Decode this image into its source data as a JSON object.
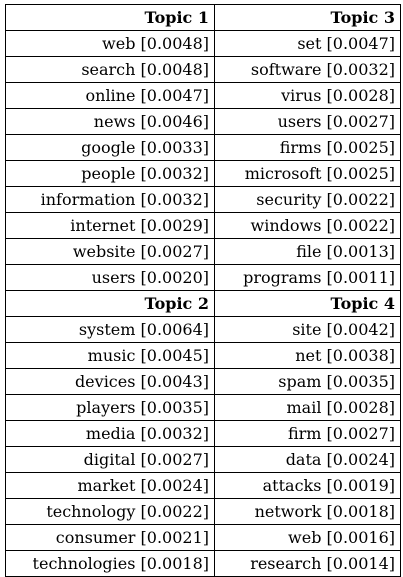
{
  "blocks": [
    {
      "headers": [
        "Topic 1",
        "Topic 3"
      ],
      "rows": [
        [
          "web [0.0048]",
          "set [0.0047]"
        ],
        [
          "search [0.0048]",
          "software [0.0032]"
        ],
        [
          "online [0.0047]",
          "virus [0.0028]"
        ],
        [
          "news [0.0046]",
          "users [0.0027]"
        ],
        [
          "google [0.0033]",
          "firms [0.0025]"
        ],
        [
          "people [0.0032]",
          "microsoft [0.0025]"
        ],
        [
          "information [0.0032]",
          "security [0.0022]"
        ],
        [
          "internet [0.0029]",
          "windows [0.0022]"
        ],
        [
          "website [0.0027]",
          "file [0.0013]"
        ],
        [
          "users [0.0020]",
          "programs [0.0011]"
        ]
      ]
    },
    {
      "headers": [
        "Topic 2",
        "Topic 4"
      ],
      "rows": [
        [
          "system [0.0064]",
          "site [0.0042]"
        ],
        [
          "music [0.0045]",
          "net [0.0038]"
        ],
        [
          "devices [0.0043]",
          "spam [0.0035]"
        ],
        [
          "players [0.0035]",
          "mail [0.0028]"
        ],
        [
          "media [0.0032]",
          "firm [0.0027]"
        ],
        [
          "digital [0.0027]",
          "data [0.0024]"
        ],
        [
          "market [0.0024]",
          "attacks [0.0019]"
        ],
        [
          "technology [0.0022]",
          "network [0.0018]"
        ],
        [
          "consumer [0.0021]",
          "web [0.0016]"
        ],
        [
          "technologies [0.0018]",
          "research [0.0014]"
        ]
      ]
    }
  ]
}
